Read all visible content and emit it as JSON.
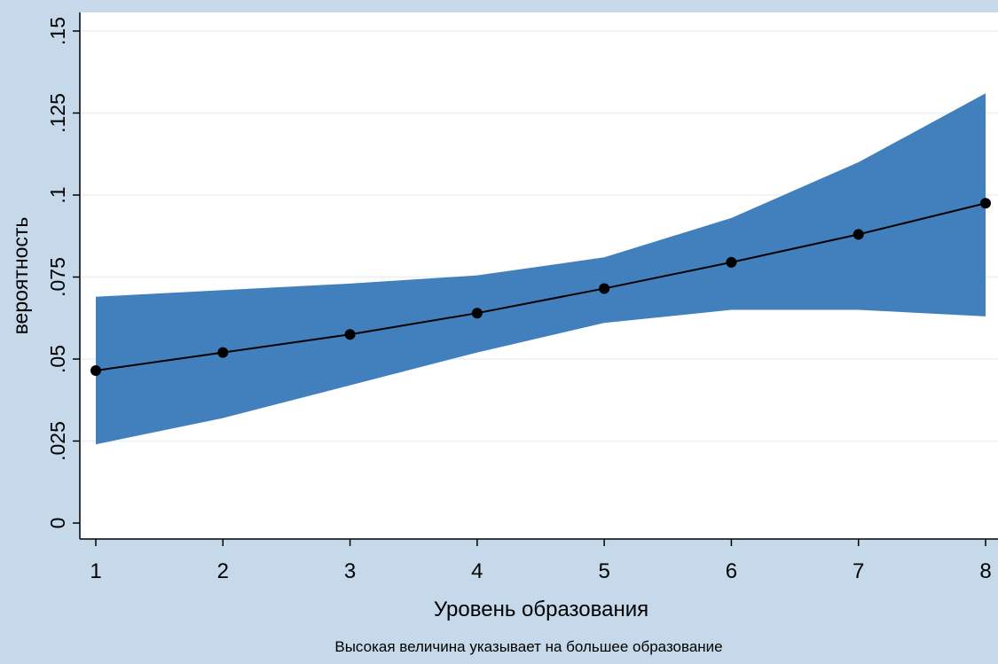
{
  "chart_data": {
    "type": "line",
    "title": "",
    "xlabel": "Уровень образования",
    "ylabel": "вероятность",
    "note": "Высокая величина указывает на большее образование",
    "x": [
      1,
      2,
      3,
      4,
      5,
      6,
      7,
      8
    ],
    "x_ticks": [
      "1",
      "2",
      "3",
      "4",
      "5",
      "6",
      "7",
      "8"
    ],
    "xlim": [
      1,
      8
    ],
    "y_ticks": [
      {
        "value": 0,
        "label": "0"
      },
      {
        "value": 0.025,
        "label": ".025"
      },
      {
        "value": 0.05,
        "label": ".05"
      },
      {
        "value": 0.075,
        "label": ".075"
      },
      {
        "value": 0.1,
        "label": ".1"
      },
      {
        "value": 0.125,
        "label": ".125"
      },
      {
        "value": 0.15,
        "label": ".15"
      }
    ],
    "ylim": [
      0,
      0.15
    ],
    "grid": true,
    "series": [
      {
        "values": [
          0.0465,
          0.052,
          0.0575,
          0.064,
          0.0715,
          0.0795,
          0.088,
          0.0975
        ],
        "lower": [
          0.024,
          0.032,
          0.042,
          0.052,
          0.061,
          0.065,
          0.065,
          0.063
        ],
        "upper": [
          0.069,
          0.071,
          0.073,
          0.0755,
          0.081,
          0.093,
          0.11,
          0.131
        ]
      }
    ],
    "colors": {
      "background": "#c5d9eb",
      "plot_area": "#ffffff",
      "band": "#4180bd",
      "line": "#000000",
      "gridline": "#e8f0f6"
    }
  }
}
